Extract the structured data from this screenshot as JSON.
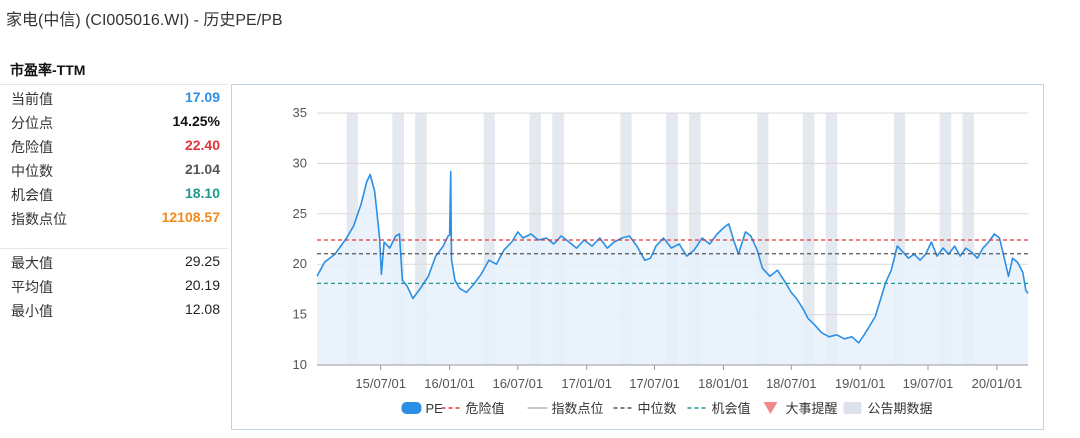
{
  "title": "家电(中信) (CI005016.WI) - 历史PE/PB",
  "section_title": "市盈率-TTM",
  "stats": [
    {
      "label": "当前值",
      "value": "17.09",
      "color": "#2e8fe6"
    },
    {
      "label": "分位点",
      "value": "14.25%",
      "color": "#111111"
    },
    {
      "label": "危险值",
      "value": "22.40",
      "color": "#e2353a"
    },
    {
      "label": "中位数",
      "value": "21.04",
      "color": "#555555"
    },
    {
      "label": "机会值",
      "value": "18.10",
      "color": "#22998e"
    },
    {
      "label": "指数点位",
      "value": "12108.57",
      "color": "#f08a1c"
    }
  ],
  "range_stats": [
    {
      "label": "最大值",
      "value": "29.25"
    },
    {
      "label": "平均值",
      "value": "20.19"
    },
    {
      "label": "最小值",
      "value": "12.08"
    }
  ],
  "chart_data": {
    "type": "line",
    "x_range": [
      "2015-01-12",
      "2020-03-24"
    ],
    "x_ticks": [
      "15/07/01",
      "16/01/01",
      "16/07/01",
      "17/01/01",
      "17/07/01",
      "18/01/01",
      "18/07/01",
      "19/01/01",
      "19/07/01",
      "20/01/01"
    ],
    "x_tick_dates": [
      "2015-07-01",
      "2016-01-01",
      "2016-07-01",
      "2017-01-01",
      "2017-07-01",
      "2018-01-01",
      "2018-07-01",
      "2019-01-01",
      "2019-07-01",
      "2020-01-01"
    ],
    "ylim": [
      10,
      35
    ],
    "y_ticks": [
      10,
      15,
      20,
      25,
      30,
      35
    ],
    "grid": true,
    "legend_position": "bottom",
    "series": [
      {
        "name": "PE",
        "color": "#2b8fe6",
        "points": [
          [
            "2015-01-12",
            18.8
          ],
          [
            "2015-02-01",
            20.2
          ],
          [
            "2015-03-01",
            21.0
          ],
          [
            "2015-04-01",
            22.6
          ],
          [
            "2015-04-20",
            23.8
          ],
          [
            "2015-05-10",
            26.0
          ],
          [
            "2015-05-25",
            28.2
          ],
          [
            "2015-06-03",
            28.9
          ],
          [
            "2015-06-15",
            27.2
          ],
          [
            "2015-06-28",
            22.6
          ],
          [
            "2015-07-03",
            19.0
          ],
          [
            "2015-07-10",
            22.2
          ],
          [
            "2015-07-25",
            21.6
          ],
          [
            "2015-08-10",
            22.8
          ],
          [
            "2015-08-20",
            23.0
          ],
          [
            "2015-08-28",
            18.4
          ],
          [
            "2015-09-10",
            17.8
          ],
          [
            "2015-09-25",
            16.6
          ],
          [
            "2015-10-15",
            17.6
          ],
          [
            "2015-11-05",
            18.8
          ],
          [
            "2015-11-25",
            20.8
          ],
          [
            "2015-12-15",
            21.8
          ],
          [
            "2015-12-28",
            22.8
          ],
          [
            "2016-01-01",
            22.9
          ],
          [
            "2016-01-04",
            29.2
          ],
          [
            "2016-01-06",
            20.5
          ],
          [
            "2016-01-15",
            18.4
          ],
          [
            "2016-01-28",
            17.6
          ],
          [
            "2016-02-15",
            17.2
          ],
          [
            "2016-03-05",
            18.0
          ],
          [
            "2016-03-25",
            19.0
          ],
          [
            "2016-04-15",
            20.4
          ],
          [
            "2016-05-05",
            20.0
          ],
          [
            "2016-05-25",
            21.4
          ],
          [
            "2016-06-15",
            22.2
          ],
          [
            "2016-07-01",
            23.2
          ],
          [
            "2016-07-15",
            22.6
          ],
          [
            "2016-08-05",
            23.0
          ],
          [
            "2016-08-25",
            22.4
          ],
          [
            "2016-09-15",
            22.6
          ],
          [
            "2016-10-05",
            22.0
          ],
          [
            "2016-10-25",
            22.8
          ],
          [
            "2016-11-15",
            22.2
          ],
          [
            "2016-12-05",
            21.6
          ],
          [
            "2016-12-25",
            22.4
          ],
          [
            "2017-01-15",
            21.8
          ],
          [
            "2017-02-05",
            22.6
          ],
          [
            "2017-02-25",
            21.6
          ],
          [
            "2017-03-15",
            22.2
          ],
          [
            "2017-04-05",
            22.6
          ],
          [
            "2017-04-25",
            22.8
          ],
          [
            "2017-05-15",
            21.8
          ],
          [
            "2017-06-05",
            20.4
          ],
          [
            "2017-06-20",
            20.6
          ],
          [
            "2017-07-05",
            21.8
          ],
          [
            "2017-07-25",
            22.6
          ],
          [
            "2017-08-15",
            21.6
          ],
          [
            "2017-09-05",
            22.0
          ],
          [
            "2017-09-25",
            20.8
          ],
          [
            "2017-10-15",
            21.4
          ],
          [
            "2017-11-05",
            22.6
          ],
          [
            "2017-11-25",
            22.0
          ],
          [
            "2017-12-15",
            23.0
          ],
          [
            "2018-01-01",
            23.6
          ],
          [
            "2018-01-15",
            24.0
          ],
          [
            "2018-01-30",
            22.2
          ],
          [
            "2018-02-10",
            21.0
          ],
          [
            "2018-03-01",
            23.2
          ],
          [
            "2018-03-15",
            22.8
          ],
          [
            "2018-04-01",
            21.4
          ],
          [
            "2018-04-15",
            19.6
          ],
          [
            "2018-05-05",
            18.8
          ],
          [
            "2018-05-25",
            19.4
          ],
          [
            "2018-06-15",
            18.2
          ],
          [
            "2018-07-01",
            17.2
          ],
          [
            "2018-07-15",
            16.6
          ],
          [
            "2018-08-01",
            15.6
          ],
          [
            "2018-08-15",
            14.6
          ],
          [
            "2018-09-01",
            14.0
          ],
          [
            "2018-09-20",
            13.2
          ],
          [
            "2018-10-10",
            12.8
          ],
          [
            "2018-10-30",
            13.0
          ],
          [
            "2018-11-20",
            12.6
          ],
          [
            "2018-12-10",
            12.8
          ],
          [
            "2018-12-28",
            12.2
          ],
          [
            "2019-01-10",
            12.9
          ],
          [
            "2019-01-25",
            13.8
          ],
          [
            "2019-02-10",
            14.8
          ],
          [
            "2019-02-25",
            16.6
          ],
          [
            "2019-03-10",
            18.2
          ],
          [
            "2019-03-25",
            19.4
          ],
          [
            "2019-04-10",
            21.8
          ],
          [
            "2019-04-25",
            21.2
          ],
          [
            "2019-05-10",
            20.6
          ],
          [
            "2019-05-25",
            21.0
          ],
          [
            "2019-06-10",
            20.4
          ],
          [
            "2019-06-25",
            21.0
          ],
          [
            "2019-07-10",
            22.2
          ],
          [
            "2019-07-25",
            20.8
          ],
          [
            "2019-08-10",
            21.6
          ],
          [
            "2019-08-25",
            21.0
          ],
          [
            "2019-09-10",
            21.8
          ],
          [
            "2019-09-25",
            20.8
          ],
          [
            "2019-10-10",
            21.6
          ],
          [
            "2019-10-25",
            21.2
          ],
          [
            "2019-11-10",
            20.6
          ],
          [
            "2019-11-25",
            21.6
          ],
          [
            "2019-12-10",
            22.2
          ],
          [
            "2019-12-25",
            23.0
          ],
          [
            "2020-01-08",
            22.6
          ],
          [
            "2020-01-18",
            21.0
          ],
          [
            "2020-02-01",
            18.8
          ],
          [
            "2020-02-12",
            20.6
          ],
          [
            "2020-02-25",
            20.2
          ],
          [
            "2020-03-10",
            19.2
          ],
          [
            "2020-03-18",
            17.4
          ],
          [
            "2020-03-24",
            17.1
          ]
        ]
      }
    ],
    "reference_lines": [
      {
        "name": "危险值",
        "value": 22.4,
        "color": "#e2353a"
      },
      {
        "name": "中位数",
        "value": 21.04,
        "color": "#555555"
      },
      {
        "name": "机会值",
        "value": 18.1,
        "color": "#22998e"
      }
    ],
    "report_periods": [
      [
        "2015-04-01",
        "2015-05-01"
      ],
      [
        "2015-08-01",
        "2015-09-01"
      ],
      [
        "2015-10-01",
        "2015-11-01"
      ],
      [
        "2016-04-01",
        "2016-05-01"
      ],
      [
        "2016-08-01",
        "2016-09-01"
      ],
      [
        "2016-10-01",
        "2016-11-01"
      ],
      [
        "2017-04-01",
        "2017-05-01"
      ],
      [
        "2017-08-01",
        "2017-09-01"
      ],
      [
        "2017-10-01",
        "2017-11-01"
      ],
      [
        "2018-04-01",
        "2018-05-01"
      ],
      [
        "2018-08-01",
        "2018-09-01"
      ],
      [
        "2018-10-01",
        "2018-11-01"
      ],
      [
        "2019-04-01",
        "2019-05-01"
      ],
      [
        "2019-08-01",
        "2019-09-01"
      ],
      [
        "2019-10-01",
        "2019-11-01"
      ]
    ],
    "legend": [
      {
        "name": "PE",
        "type": "pill",
        "color": "#2b8fe6"
      },
      {
        "name": "危险值",
        "type": "dash",
        "color": "#e2353a"
      },
      {
        "name": "指数点位",
        "type": "line",
        "color": "#c8c8c8",
        "muted": true
      },
      {
        "name": "中位数",
        "type": "dash",
        "color": "#555555"
      },
      {
        "name": "机会值",
        "type": "dash",
        "color": "#22998e"
      },
      {
        "name": "大事提醒",
        "type": "triangle",
        "color": "#f08a8a"
      },
      {
        "name": "公告期数据",
        "type": "block",
        "color": "#dde3ec"
      }
    ],
    "colors": {
      "area_fill": "#e6f1fb",
      "period_shade": "#e4e8ef",
      "grid": "#d9d9d9"
    }
  }
}
